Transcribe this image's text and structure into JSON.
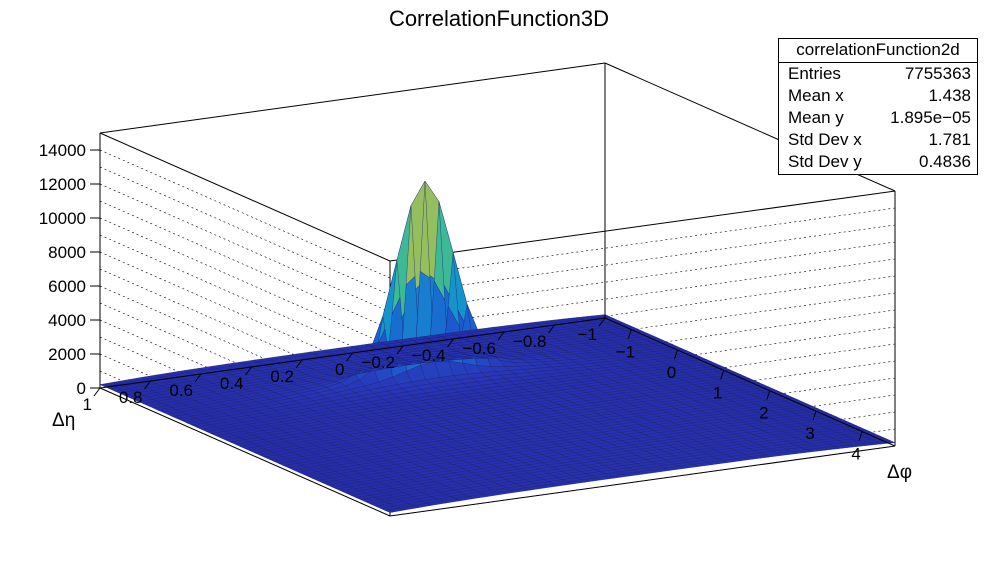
{
  "chart_data": {
    "type": "surface",
    "title": "CorrelationFunction3D",
    "xlabel": "Δφ",
    "ylabel": "Δη",
    "zlabel": "",
    "xlim": [
      -1.5708,
      4.7124
    ],
    "ylim": [
      -1,
      1
    ],
    "zlim": [
      0,
      15000
    ],
    "x_ticks": [
      "−1",
      "0",
      "1",
      "2",
      "3",
      "4"
    ],
    "y_ticks": [
      "−1",
      "−0.8",
      "−0.6",
      "−0.4",
      "−0.2",
      "0",
      "0.2",
      "0.4",
      "0.6",
      "0.8",
      "1"
    ],
    "z_ticks": [
      "0",
      "2000",
      "4000",
      "6000",
      "8000",
      "10000",
      "12000",
      "14000"
    ],
    "surface": {
      "background_level": 400,
      "edge_level_eta_minus1": 130,
      "edge_level_eta_plus1": 200,
      "peak": {
        "delta_phi": 0,
        "delta_eta": 0,
        "height": 11000
      },
      "colormap": "kBird (blue to yellow)"
    },
    "grid": true,
    "legend_position": "top-right"
  },
  "stats_box": {
    "name": "correlationFunction2d",
    "rows": [
      {
        "label": "Entries",
        "value": "7755363"
      },
      {
        "label": "Mean x",
        "value": "1.438"
      },
      {
        "label": "Mean y",
        "value": "1.895e−05"
      },
      {
        "label": "Std Dev x",
        "value": "1.781"
      },
      {
        "label": "Std Dev y",
        "value": "0.4836"
      }
    ]
  }
}
